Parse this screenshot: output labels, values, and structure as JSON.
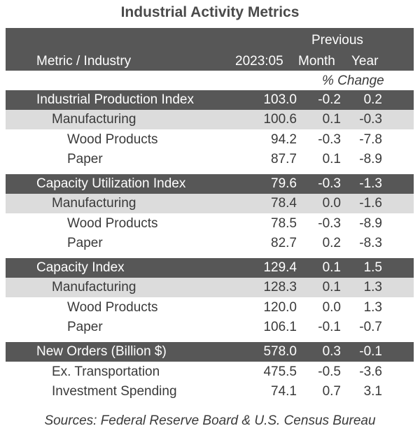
{
  "title": "Industrial Activity Metrics",
  "header": {
    "previous": "Previous",
    "metric": "Metric / Industry",
    "date": "2023:05",
    "month": "Month",
    "year": "Year",
    "pct_change": "% Change"
  },
  "sections": [
    {
      "rows": [
        {
          "label": "Industrial Production Index",
          "value": "103.0",
          "month": "-0.2",
          "year": "0.2"
        },
        {
          "label": "Manufacturing",
          "value": "100.6",
          "month": "0.1",
          "year": "-0.3"
        },
        {
          "label": "Wood Products",
          "value": "94.2",
          "month": "-0.3",
          "year": "-7.8"
        },
        {
          "label": "Paper",
          "value": "87.7",
          "month": "0.1",
          "year": "-8.9"
        }
      ]
    },
    {
      "rows": [
        {
          "label": "Capacity Utilization Index",
          "value": "79.6",
          "month": "-0.3",
          "year": "-1.3"
        },
        {
          "label": "Manufacturing",
          "value": "78.4",
          "month": "0.0",
          "year": "-1.6"
        },
        {
          "label": "Wood Products",
          "value": "78.5",
          "month": "-0.3",
          "year": "-8.9"
        },
        {
          "label": "Paper",
          "value": "82.7",
          "month": "0.2",
          "year": "-8.3"
        }
      ]
    },
    {
      "rows": [
        {
          "label": "Capacity Index",
          "value": "129.4",
          "month": "0.1",
          "year": "1.5"
        },
        {
          "label": "Manufacturing",
          "value": "128.3",
          "month": "0.1",
          "year": "1.3"
        },
        {
          "label": "Wood Products",
          "value": "120.0",
          "month": "0.0",
          "year": "1.3"
        },
        {
          "label": "Paper",
          "value": "106.1",
          "month": "-0.1",
          "year": "-0.7"
        }
      ]
    },
    {
      "rows": [
        {
          "label": "New Orders (Billion $)",
          "value": "578.0",
          "month": "0.3",
          "year": "-0.1"
        },
        {
          "label": "Ex. Transportation",
          "value": "475.5",
          "month": "-0.5",
          "year": "-3.6"
        },
        {
          "label": "Investment Spending",
          "value": "74.1",
          "month": "0.7",
          "year": "3.1"
        }
      ]
    }
  ],
  "source": "Sources: Federal Reserve Board & U.S. Census Bureau"
}
